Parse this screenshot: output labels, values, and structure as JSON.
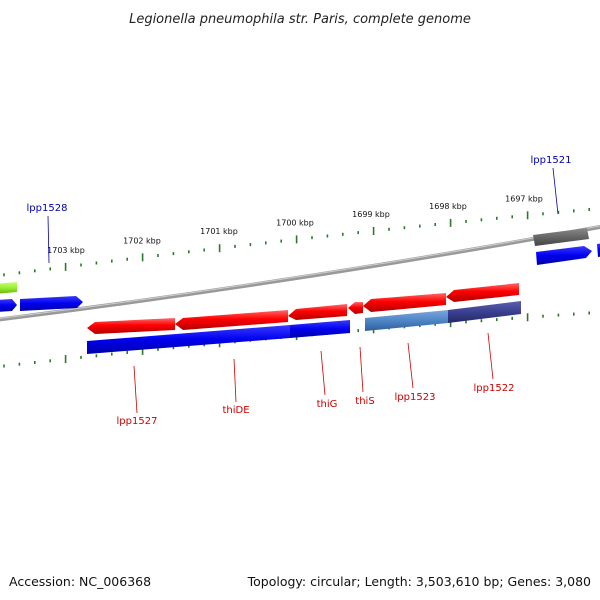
{
  "title": "Legionella pneumophila str. Paris, complete genome",
  "footer": {
    "accession": "Accession: NC_006368",
    "summary": "Topology: circular; Length: 3,503,610 bp; Genes: 3,080"
  },
  "scale_ticks": [
    {
      "label": "1703 kbp",
      "kbp": 1703
    },
    {
      "label": "1702 kbp",
      "kbp": 1702
    },
    {
      "label": "1701 kbp",
      "kbp": 1701
    },
    {
      "label": "1700 kbp",
      "kbp": 1700
    },
    {
      "label": "1699 kbp",
      "kbp": 1699
    },
    {
      "label": "1698 kbp",
      "kbp": 1698
    },
    {
      "label": "1697 kbp",
      "kbp": 1697
    }
  ],
  "colors": {
    "backbone": "#8a8a8a",
    "tick": "#2a7a2a",
    "gene_red": "#ff0000",
    "cds_blue": "#0000ee",
    "feature_lightblue": "#4f86c6",
    "feature_purple": "#3a3f8f",
    "feature_gray": "#6a6a6a",
    "feature_green": "#99ee33",
    "label_forward": "#0000aa",
    "label_reverse": "#cc0000"
  },
  "gene_labels": [
    {
      "name": "lpp1528",
      "strand": "forward"
    },
    {
      "name": "lpp1521",
      "strand": "forward"
    },
    {
      "name": "lpp1527",
      "strand": "reverse"
    },
    {
      "name": "thiDE",
      "strand": "reverse"
    },
    {
      "name": "thiG",
      "strand": "reverse"
    },
    {
      "name": "thiS",
      "strand": "reverse"
    },
    {
      "name": "lpp1523",
      "strand": "reverse"
    },
    {
      "name": "lpp1522",
      "strand": "reverse"
    }
  ]
}
